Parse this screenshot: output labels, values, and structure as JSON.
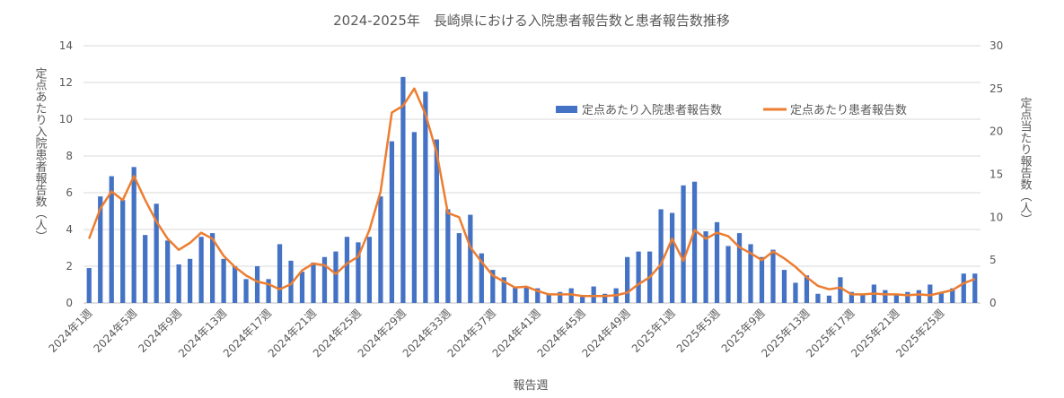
{
  "chart_data": {
    "type": "bar",
    "title": "2024-2025年　長崎県における入院患者報告数と患者報告数推移",
    "xlabel": "報告週",
    "ylabel_left": "定点あたり入院患者報告数（人）",
    "ylabel_right": "定点当たり報告数（人）",
    "ylim_left": [
      0,
      14
    ],
    "ylim_right": [
      0,
      30
    ],
    "yticks_left": [
      "0",
      "2",
      "4",
      "6",
      "8",
      "10",
      "12",
      "14"
    ],
    "yticks_right": [
      "0",
      "5",
      "10",
      "15",
      "20",
      "25",
      "30"
    ],
    "grid": true,
    "legend_position": "top-right",
    "categories": [
      "2024年1週",
      "2024年2週",
      "2024年3週",
      "2024年4週",
      "2024年5週",
      "2024年6週",
      "2024年7週",
      "2024年8週",
      "2024年9週",
      "2024年10週",
      "2024年11週",
      "2024年12週",
      "2024年13週",
      "2024年14週",
      "2024年15週",
      "2024年16週",
      "2024年17週",
      "2024年18週",
      "2024年19週",
      "2024年20週",
      "2024年21週",
      "2024年22週",
      "2024年23週",
      "2024年24週",
      "2024年25週",
      "2024年26週",
      "2024年27週",
      "2024年28週",
      "2024年29週",
      "2024年30週",
      "2024年31週",
      "2024年32週",
      "2024年33週",
      "2024年34週",
      "2024年35週",
      "2024年36週",
      "2024年37週",
      "2024年38週",
      "2024年39週",
      "2024年40週",
      "2024年41週",
      "2024年42週",
      "2024年43週",
      "2024年44週",
      "2024年45週",
      "2024年46週",
      "2024年47週",
      "2024年48週",
      "2024年49週",
      "2024年50週",
      "2024年51週",
      "2024年52週",
      "2025年1週",
      "2025年2週",
      "2025年3週",
      "2025年4週",
      "2025年5週",
      "2025年6週",
      "2025年7週",
      "2025年8週",
      "2025年9週",
      "2025年10週",
      "2025年11週",
      "2025年12週",
      "2025年13週",
      "2025年14週",
      "2025年15週",
      "2025年16週",
      "2025年17週",
      "2025年18週",
      "2025年19週",
      "2025年20週",
      "2025年21週",
      "2025年22週",
      "2025年23週",
      "2025年24週",
      "2025年25週",
      "2025年26週",
      "2025年27週",
      "2025年28週"
    ],
    "x_tick_labels": [
      "2024年1週",
      "2024年5週",
      "2024年9週",
      "2024年13週",
      "2024年17週",
      "2024年21週",
      "2024年25週",
      "2024年29週",
      "2024年33週",
      "2024年37週",
      "2024年41週",
      "2024年45週",
      "2024年49週",
      "2025年1週",
      "2025年5週",
      "2025年9週",
      "2025年13週",
      "2025年17週",
      "2025年21週",
      "2025年25週"
    ],
    "series": [
      {
        "name": "定点あたり入院患者報告数",
        "axis": "left",
        "kind": "bar",
        "color": "#4472c4",
        "values": [
          1.9,
          5.8,
          6.9,
          5.6,
          7.4,
          3.7,
          5.4,
          3.4,
          2.1,
          2.4,
          3.6,
          3.8,
          2.4,
          2.0,
          1.3,
          2.0,
          1.3,
          3.2,
          2.3,
          1.7,
          2.2,
          2.5,
          2.8,
          3.6,
          3.3,
          3.6,
          5.8,
          8.8,
          12.3,
          9.3,
          11.5,
          8.9,
          5.1,
          3.8,
          4.8,
          2.7,
          1.8,
          1.4,
          0.9,
          0.9,
          0.8,
          0.5,
          0.6,
          0.8,
          0.4,
          0.9,
          0.5,
          0.8,
          2.5,
          2.8,
          2.8,
          5.1,
          4.9,
          6.4,
          6.6,
          3.9,
          4.4,
          3.1,
          3.8,
          3.2,
          2.5,
          2.9,
          1.8,
          1.1,
          1.5,
          0.5,
          0.4,
          1.4,
          0.6,
          0.5,
          1.0,
          0.7,
          0.5,
          0.6,
          0.7,
          1.0,
          0.6,
          0.8,
          1.6,
          1.6
        ]
      },
      {
        "name": "定点あたり患者報告数",
        "axis": "right",
        "kind": "line",
        "color": "#ed7d31",
        "values": [
          7.5,
          11.0,
          13.0,
          12.0,
          14.8,
          12.0,
          9.5,
          7.5,
          6.2,
          7.0,
          8.2,
          7.5,
          5.5,
          4.2,
          3.2,
          2.5,
          2.2,
          1.6,
          2.2,
          3.8,
          4.6,
          4.4,
          3.4,
          4.6,
          5.4,
          8.5,
          13.0,
          22.2,
          23.0,
          25.0,
          22.0,
          17.5,
          10.5,
          10.0,
          6.5,
          4.8,
          3.2,
          2.5,
          1.8,
          1.9,
          1.4,
          1.0,
          1.0,
          1.0,
          0.8,
          0.8,
          0.8,
          0.9,
          1.2,
          2.2,
          3.0,
          4.5,
          7.5,
          4.9,
          8.5,
          7.5,
          8.2,
          7.8,
          6.5,
          5.8,
          5.0,
          6.0,
          5.2,
          4.2,
          3.0,
          2.0,
          1.6,
          1.8,
          1.0,
          1.0,
          1.1,
          1.0,
          1.0,
          0.9,
          1.0,
          0.9,
          1.2,
          1.5,
          2.3,
          2.8
        ]
      }
    ]
  }
}
